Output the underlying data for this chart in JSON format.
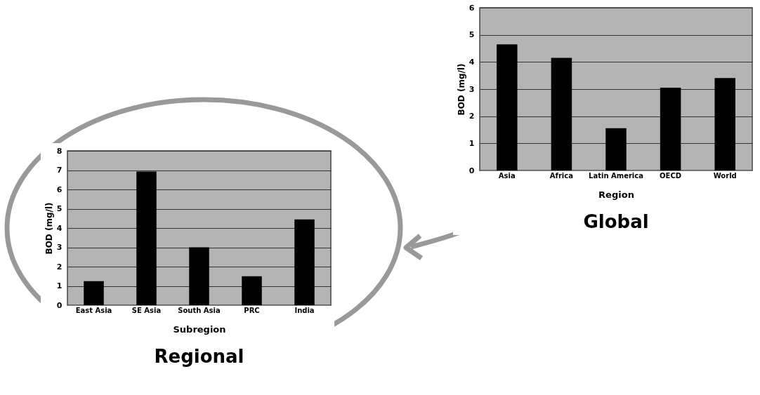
{
  "chart_data": [
    {
      "type": "bar",
      "title": "Global",
      "xlabel": "Region",
      "ylabel": "BOD (mg/l)",
      "categories": [
        "Asia",
        "Africa",
        "Latin America",
        "OECD",
        "World"
      ],
      "values": [
        4.65,
        4.15,
        1.56,
        3.05,
        3.41
      ],
      "color": "#000000",
      "ylim": [
        0,
        6
      ],
      "yticks": [
        0,
        1,
        2,
        3,
        4,
        5,
        6
      ],
      "grid": "y"
    },
    {
      "type": "bar",
      "title": "Regional",
      "xlabel": "Subregion",
      "ylabel": "BOD (mg/l)",
      "categories": [
        "East Asia",
        "SE Asia",
        "South Asia",
        "PRC",
        "India"
      ],
      "values": [
        1.25,
        6.93,
        3.0,
        1.5,
        4.45
      ],
      "color": "#000000",
      "ylim": [
        0,
        8
      ],
      "yticks": [
        0,
        1,
        2,
        3,
        4,
        5,
        6,
        7,
        8
      ],
      "grid": "y"
    }
  ]
}
